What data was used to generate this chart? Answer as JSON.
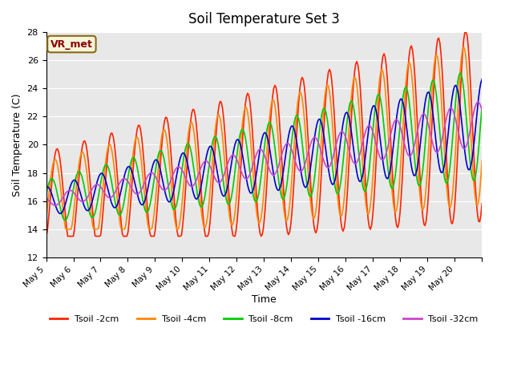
{
  "title": "Soil Temperature Set 3",
  "xlabel": "Time",
  "ylabel": "Soil Temperature (C)",
  "ylim": [
    12,
    28
  ],
  "yticks": [
    12,
    14,
    16,
    18,
    20,
    22,
    24,
    26,
    28
  ],
  "background_color": "#e8e8e8",
  "annotation_text": "VR_met",
  "annotation_color": "#8b0000",
  "annotation_bg": "#f5f5dc",
  "annotation_border": "#8b6914",
  "series": [
    {
      "label": "Tsoil -2cm",
      "color": "#ff2200"
    },
    {
      "label": "Tsoil -4cm",
      "color": "#ff8800"
    },
    {
      "label": "Tsoil -8cm",
      "color": "#00cc00"
    },
    {
      "label": "Tsoil -16cm",
      "color": "#0000cc"
    },
    {
      "label": "Tsoil -32cm",
      "color": "#cc44cc"
    }
  ],
  "xtick_labels": [
    "May 5",
    "May 6",
    "May 7",
    "May 8",
    "May 9",
    "May 10",
    "May 11",
    "May 12",
    "May 13",
    "May 14",
    "May 15",
    "May 16",
    "May 17",
    "May 18",
    "May 19",
    "May 20"
  ],
  "num_days": 16,
  "points_per_day": 24
}
